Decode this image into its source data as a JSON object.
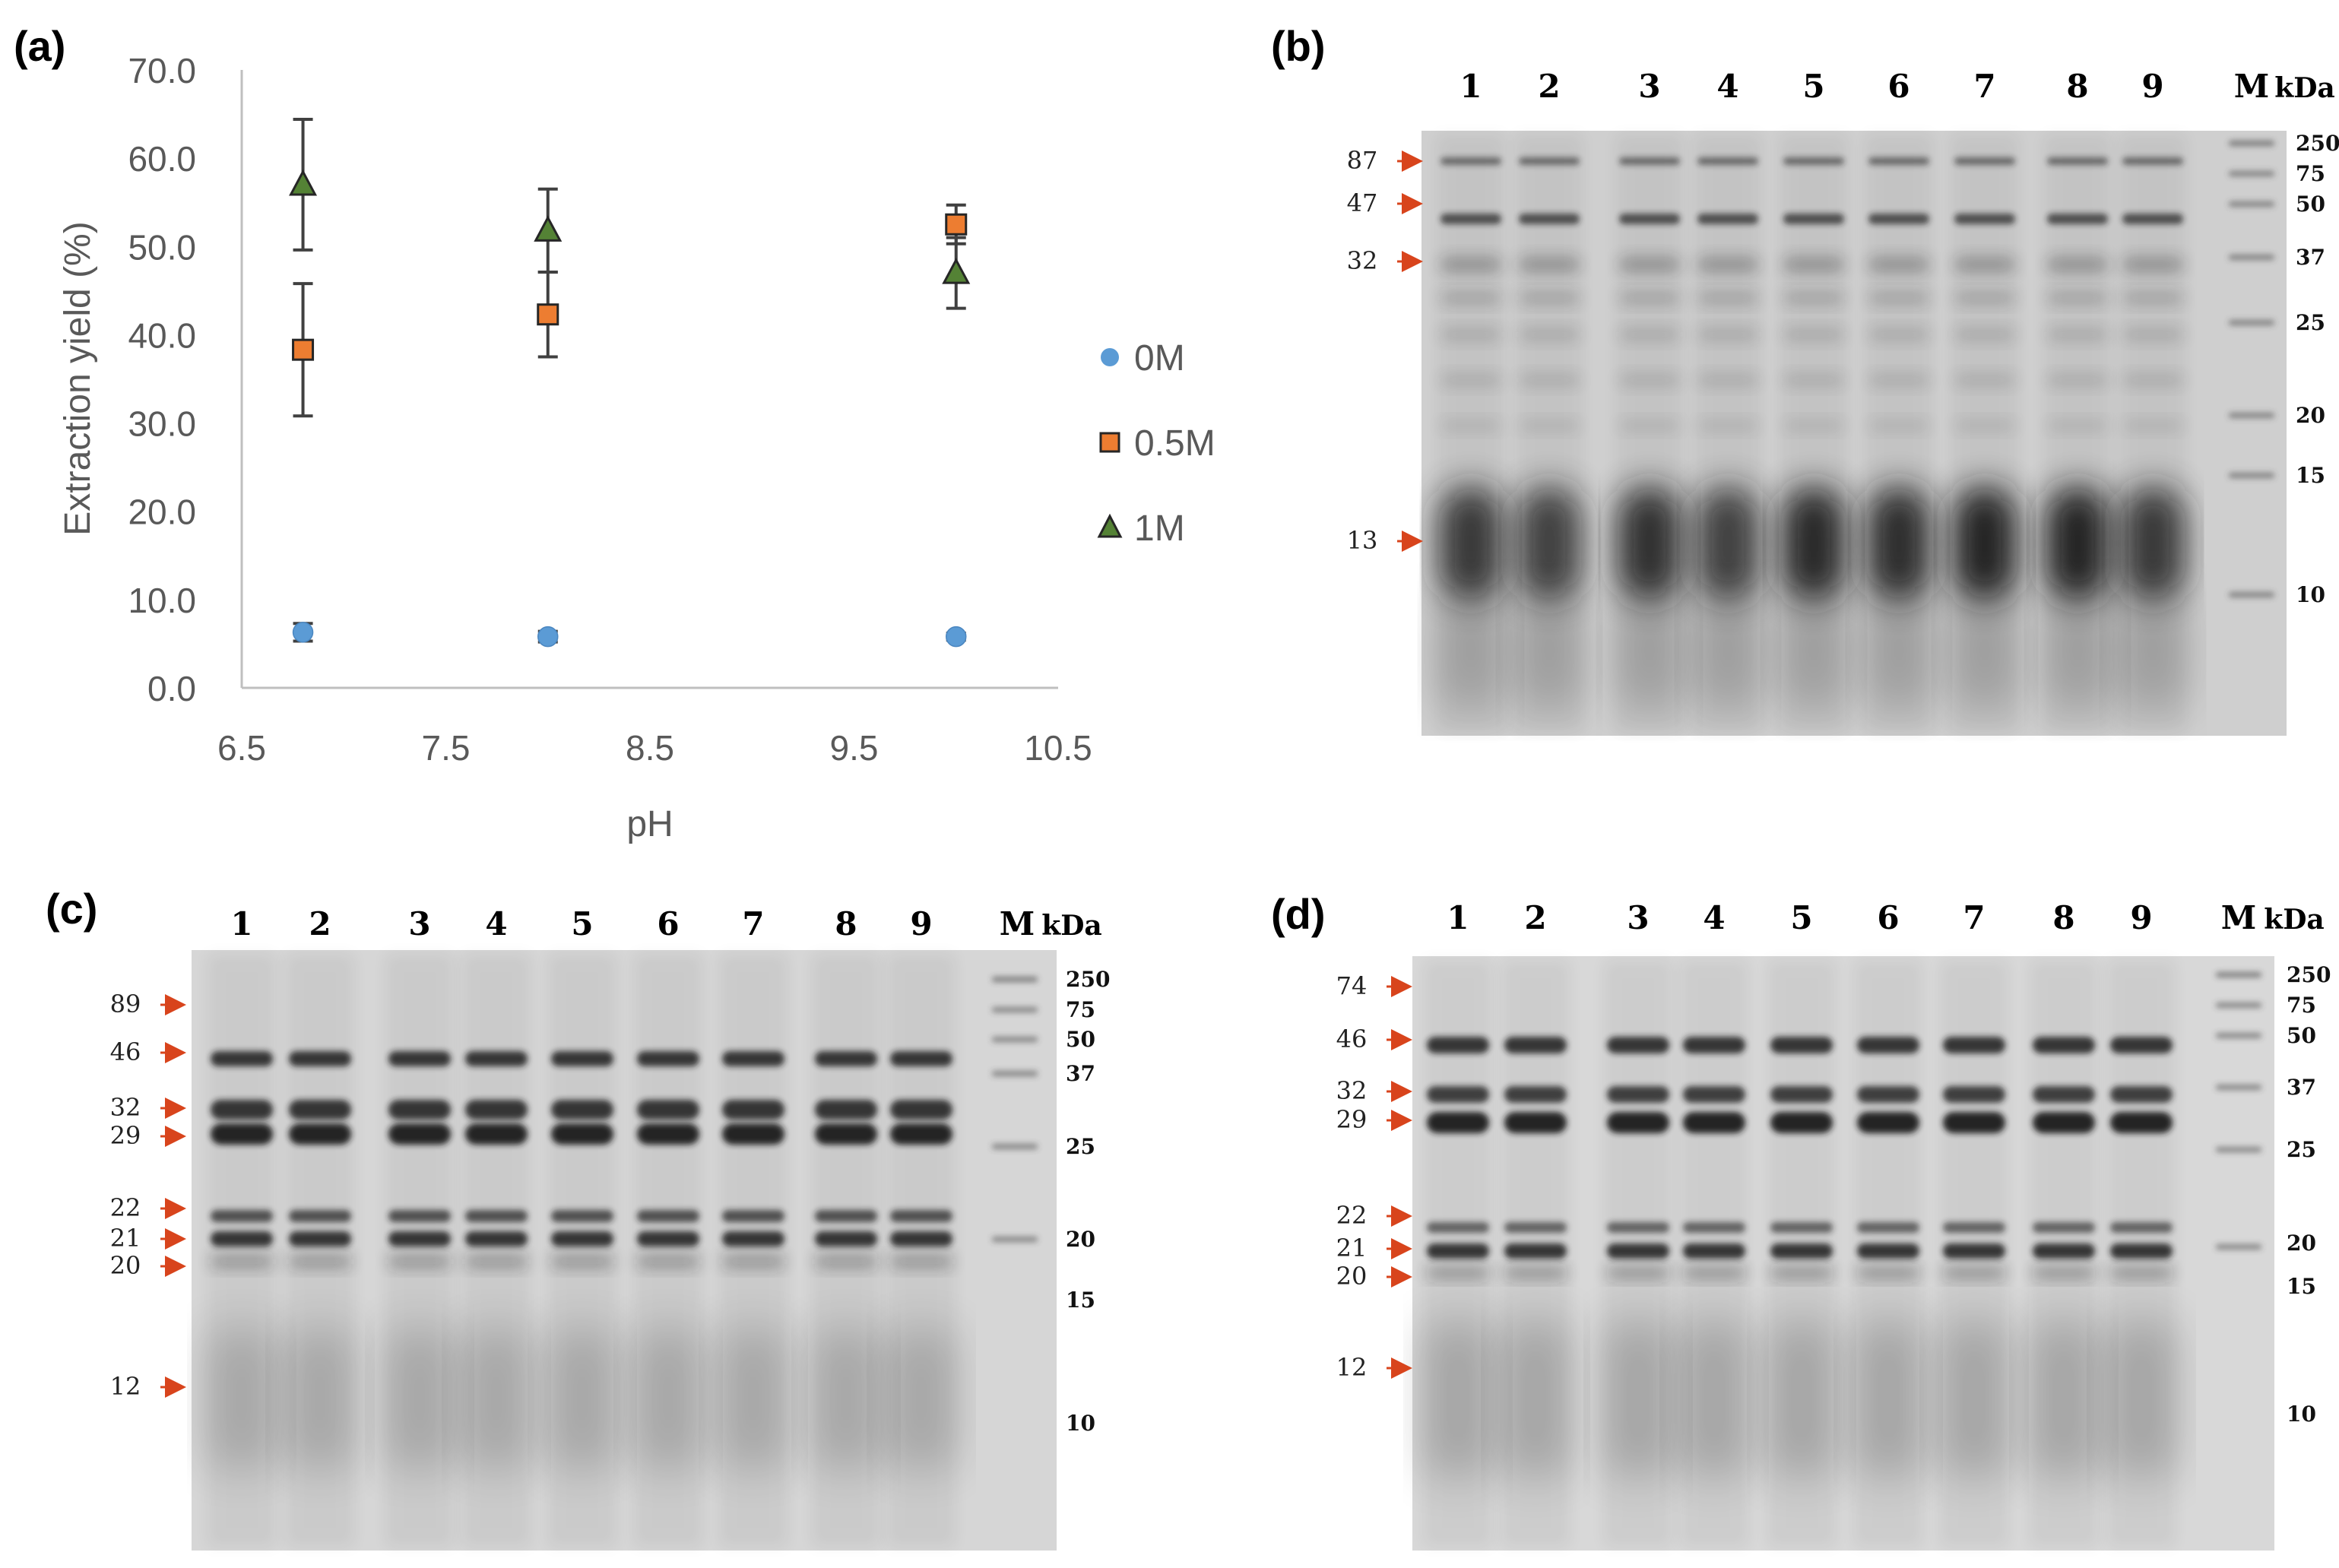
{
  "chart_data": {
    "panel_label": "(a)",
    "type": "scatter",
    "xlabel": "pH",
    "ylabel": "Extraction yield (%)",
    "xlim": [
      6.5,
      10.5
    ],
    "ylim": [
      0,
      70
    ],
    "x_ticks": [
      "6.5",
      "7.5",
      "8.5",
      "9.5",
      "10.5"
    ],
    "y_ticks": [
      "0.0",
      "10.0",
      "20.0",
      "30.0",
      "40.0",
      "50.0",
      "60.0",
      "70.0"
    ],
    "grid": false,
    "legend_position": "right",
    "series": [
      {
        "name": "0M",
        "marker": "circle",
        "color": "#5b9bd5",
        "points": [
          {
            "x": 6.8,
            "y": 6.3,
            "err": 1.0
          },
          {
            "x": 8.0,
            "y": 5.8,
            "err": 0.6
          },
          {
            "x": 10.0,
            "y": 5.8,
            "err": 0.4
          }
        ]
      },
      {
        "name": "0.5M",
        "marker": "square",
        "color": "#ed7d31",
        "points": [
          {
            "x": 6.8,
            "y": 38.3,
            "err": 7.5
          },
          {
            "x": 8.0,
            "y": 42.3,
            "err": 4.8
          },
          {
            "x": 10.0,
            "y": 52.5,
            "err": 2.2
          }
        ]
      },
      {
        "name": "1M",
        "marker": "triangle",
        "color": "#548235",
        "points": [
          {
            "x": 6.8,
            "y": 57.0,
            "err": 7.4
          },
          {
            "x": 8.0,
            "y": 51.8,
            "err": 4.7
          },
          {
            "x": 10.0,
            "y": 47.0,
            "err": 4.0
          }
        ]
      }
    ]
  },
  "gels": [
    {
      "panel_label": "(b)",
      "lane_labels": [
        "1",
        "2",
        "3",
        "4",
        "5",
        "6",
        "7",
        "8",
        "9",
        "M"
      ],
      "unit_label": "kDa",
      "marker_mw": [
        "250",
        "75",
        "50",
        "37",
        "25",
        "20",
        "15",
        "10"
      ],
      "arrow_labels": [
        "87",
        "47",
        "32",
        "13"
      ]
    },
    {
      "panel_label": "(c)",
      "lane_labels": [
        "1",
        "2",
        "3",
        "4",
        "5",
        "6",
        "7",
        "8",
        "9",
        "M"
      ],
      "unit_label": "kDa",
      "marker_mw": [
        "250",
        "75",
        "50",
        "37",
        "25",
        "20",
        "15",
        "10"
      ],
      "arrow_labels": [
        "89",
        "46",
        "32",
        "29",
        "22",
        "21",
        "20",
        "12"
      ]
    },
    {
      "panel_label": "(d)",
      "lane_labels": [
        "1",
        "2",
        "3",
        "4",
        "5",
        "6",
        "7",
        "8",
        "9",
        "M"
      ],
      "unit_label": "kDa",
      "marker_mw": [
        "250",
        "75",
        "50",
        "37",
        "25",
        "20",
        "15",
        "10"
      ],
      "arrow_labels": [
        "74",
        "46",
        "32",
        "29",
        "22",
        "21",
        "20",
        "12"
      ]
    }
  ],
  "colors": {
    "axis": "#bfbfbf",
    "text": "#595959",
    "errorbar": "#404040",
    "arrow": "#d8441c",
    "band": "#1a1a1a",
    "gel_bg": "#d2d2d2"
  }
}
